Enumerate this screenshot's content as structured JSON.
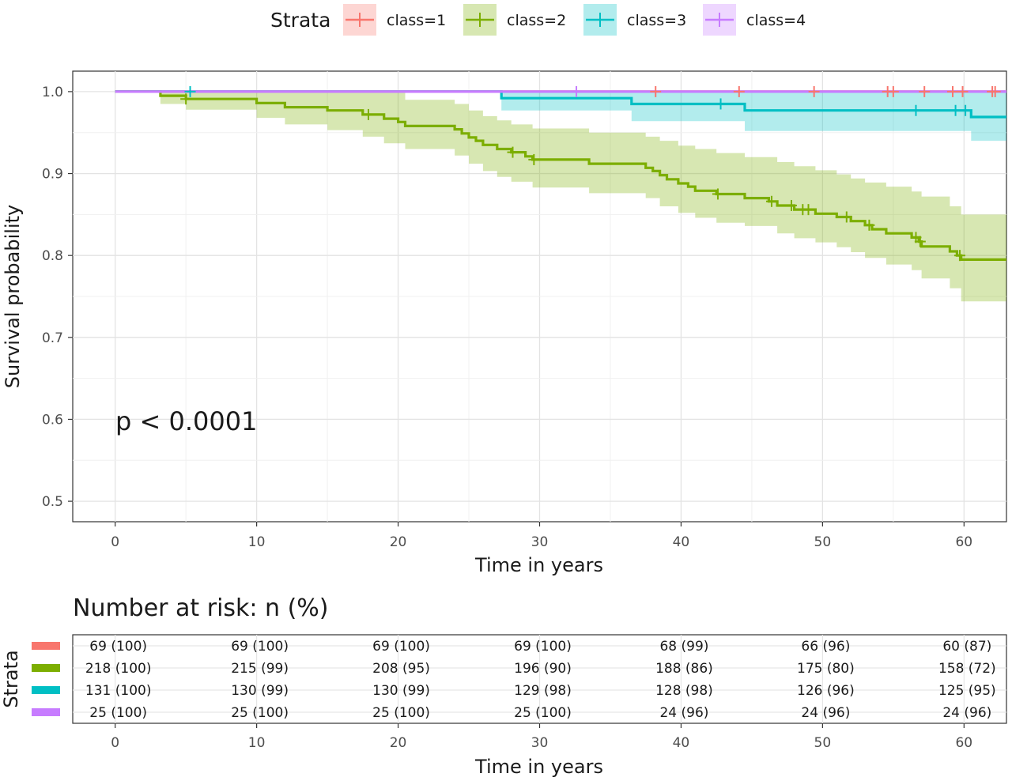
{
  "chart_data": [
    {
      "type": "line",
      "subtype": "kaplan-meier",
      "title": "",
      "xlabel": "Time in years",
      "ylabel": "Survival probability",
      "xlim": [
        -3,
        63
      ],
      "ylim": [
        0.475,
        1.025
      ],
      "xticks": [
        0,
        10,
        20,
        30,
        40,
        50,
        60
      ],
      "yticks": [
        0.5,
        0.6,
        0.7,
        0.8,
        0.9,
        1.0
      ],
      "ytick_labels": [
        "0.5",
        "0.6",
        "0.7",
        "0.8",
        "0.9",
        "1.0"
      ],
      "grid": true,
      "legend": {
        "title": "Strata",
        "position": "top"
      },
      "annotation": "p < 0.0001",
      "series": [
        {
          "name": "class=1",
          "color": "#F8766D",
          "steps": [
            [
              0,
              1.0
            ],
            [
              63,
              1.0
            ]
          ],
          "censor_times": [
            38.2,
            44.1,
            49.4,
            54.6,
            55.0,
            57.2,
            59.2,
            59.9,
            62.0,
            62.2
          ],
          "ci_lower": [],
          "ci_upper": []
        },
        {
          "name": "class=2",
          "color": "#7CAE00",
          "steps": [
            [
              0,
              1.0
            ],
            [
              3.2,
              0.995
            ],
            [
              5.0,
              0.991
            ],
            [
              10.0,
              0.986
            ],
            [
              12.0,
              0.981
            ],
            [
              15.0,
              0.977
            ],
            [
              17.5,
              0.972
            ],
            [
              19.0,
              0.967
            ],
            [
              20.0,
              0.963
            ],
            [
              20.5,
              0.958
            ],
            [
              24.0,
              0.954
            ],
            [
              24.5,
              0.949
            ],
            [
              25.0,
              0.944
            ],
            [
              25.5,
              0.94
            ],
            [
              26.0,
              0.935
            ],
            [
              27.0,
              0.93
            ],
            [
              28.0,
              0.926
            ],
            [
              29.0,
              0.921
            ],
            [
              29.5,
              0.917
            ],
            [
              33.5,
              0.912
            ],
            [
              37.5,
              0.907
            ],
            [
              38.0,
              0.903
            ],
            [
              38.5,
              0.898
            ],
            [
              39.0,
              0.893
            ],
            [
              39.8,
              0.888
            ],
            [
              40.5,
              0.884
            ],
            [
              41.0,
              0.879
            ],
            [
              42.5,
              0.875
            ],
            [
              44.5,
              0.87
            ],
            [
              46.2,
              0.866
            ],
            [
              46.8,
              0.861
            ],
            [
              48.0,
              0.856
            ],
            [
              49.5,
              0.851
            ],
            [
              51.0,
              0.847
            ],
            [
              52.0,
              0.842
            ],
            [
              53.0,
              0.837
            ],
            [
              53.5,
              0.832
            ],
            [
              54.5,
              0.827
            ],
            [
              56.3,
              0.822
            ],
            [
              56.8,
              0.817
            ],
            [
              57.0,
              0.811
            ],
            [
              59.0,
              0.805
            ],
            [
              59.5,
              0.8
            ],
            [
              59.8,
              0.795
            ],
            [
              63,
              0.795
            ]
          ],
          "censor_times": [
            5.0,
            17.9,
            28.1,
            29.6,
            42.6,
            46.4,
            47.8,
            48.6,
            49.0,
            51.7,
            53.3,
            56.6,
            56.9,
            59.7
          ],
          "ci_lower": [
            [
              0,
              1.0
            ],
            [
              3.2,
              0.985
            ],
            [
              5.0,
              0.978
            ],
            [
              10.0,
              0.968
            ],
            [
              12.0,
              0.96
            ],
            [
              15.0,
              0.953
            ],
            [
              17.5,
              0.945
            ],
            [
              19.0,
              0.937
            ],
            [
              20.5,
              0.93
            ],
            [
              24.0,
              0.922
            ],
            [
              25.0,
              0.912
            ],
            [
              26.0,
              0.903
            ],
            [
              27.0,
              0.896
            ],
            [
              28.0,
              0.89
            ],
            [
              29.5,
              0.883
            ],
            [
              33.5,
              0.876
            ],
            [
              37.5,
              0.87
            ],
            [
              38.5,
              0.86
            ],
            [
              39.8,
              0.852
            ],
            [
              41.0,
              0.846
            ],
            [
              42.5,
              0.84
            ],
            [
              44.5,
              0.836
            ],
            [
              46.8,
              0.827
            ],
            [
              48.0,
              0.821
            ],
            [
              49.5,
              0.816
            ],
            [
              51.0,
              0.81
            ],
            [
              52.0,
              0.804
            ],
            [
              53.0,
              0.797
            ],
            [
              54.5,
              0.789
            ],
            [
              56.3,
              0.782
            ],
            [
              57.0,
              0.772
            ],
            [
              59.0,
              0.76
            ],
            [
              59.8,
              0.744
            ],
            [
              63,
              0.744
            ]
          ],
          "ci_upper": [
            [
              0,
              1.0
            ],
            [
              3.2,
              1.0
            ],
            [
              20.0,
              1.0
            ],
            [
              20.5,
              0.99
            ],
            [
              24.0,
              0.985
            ],
            [
              25.0,
              0.977
            ],
            [
              26.0,
              0.97
            ],
            [
              27.0,
              0.965
            ],
            [
              28.0,
              0.96
            ],
            [
              29.5,
              0.955
            ],
            [
              33.5,
              0.95
            ],
            [
              37.5,
              0.945
            ],
            [
              38.5,
              0.94
            ],
            [
              39.8,
              0.934
            ],
            [
              41.0,
              0.93
            ],
            [
              42.5,
              0.925
            ],
            [
              44.5,
              0.92
            ],
            [
              46.8,
              0.914
            ],
            [
              48.0,
              0.909
            ],
            [
              49.5,
              0.904
            ],
            [
              51.0,
              0.899
            ],
            [
              52.0,
              0.894
            ],
            [
              53.0,
              0.889
            ],
            [
              54.5,
              0.884
            ],
            [
              56.3,
              0.878
            ],
            [
              57.0,
              0.872
            ],
            [
              59.0,
              0.86
            ],
            [
              59.8,
              0.85
            ],
            [
              63,
              0.85
            ]
          ]
        },
        {
          "name": "class=3",
          "color": "#00BFC4",
          "steps": [
            [
              0,
              1.0
            ],
            [
              27.3,
              0.992
            ],
            [
              36.5,
              0.985
            ],
            [
              44.5,
              0.977
            ],
            [
              60.5,
              0.969
            ],
            [
              63,
              0.969
            ]
          ],
          "censor_times": [
            5.3,
            42.8,
            56.6,
            59.4,
            60.1
          ],
          "ci_lower": [
            [
              0,
              1.0
            ],
            [
              27.3,
              0.977
            ],
            [
              36.5,
              0.964
            ],
            [
              44.5,
              0.952
            ],
            [
              60.5,
              0.94
            ],
            [
              63,
              0.94
            ]
          ],
          "ci_upper": [
            [
              0,
              1.0
            ],
            [
              63,
              1.0
            ]
          ]
        },
        {
          "name": "class=4",
          "color": "#C77CFF",
          "steps": [
            [
              0,
              1.0
            ],
            [
              63,
              1.0
            ]
          ],
          "censor_times": [
            32.6
          ],
          "ci_lower": [],
          "ci_upper": []
        }
      ]
    },
    {
      "type": "table",
      "title": "Number at risk: n (%)",
      "ylabel": "Strata",
      "xlabel": "Time in years",
      "times": [
        0,
        10,
        20,
        30,
        40,
        50,
        60
      ],
      "rows": [
        {
          "series": "class=1",
          "color": "#F8766D",
          "cells": [
            "69 (100)",
            "69 (100)",
            "69 (100)",
            "69 (100)",
            "68 (99)",
            "66 (96)",
            "60 (87)"
          ]
        },
        {
          "series": "class=2",
          "color": "#7CAE00",
          "cells": [
            "218 (100)",
            "215 (99)",
            "208 (95)",
            "196 (90)",
            "188 (86)",
            "175 (80)",
            "158 (72)"
          ]
        },
        {
          "series": "class=3",
          "color": "#00BFC4",
          "cells": [
            "131 (100)",
            "130 (99)",
            "130 (99)",
            "129 (98)",
            "128 (98)",
            "126 (96)",
            "125 (95)"
          ]
        },
        {
          "series": "class=4",
          "color": "#C77CFF",
          "cells": [
            "25 (100)",
            "25 (100)",
            "25 (100)",
            "25 (100)",
            "24 (96)",
            "24 (96)",
            "24 (96)"
          ]
        }
      ]
    }
  ]
}
